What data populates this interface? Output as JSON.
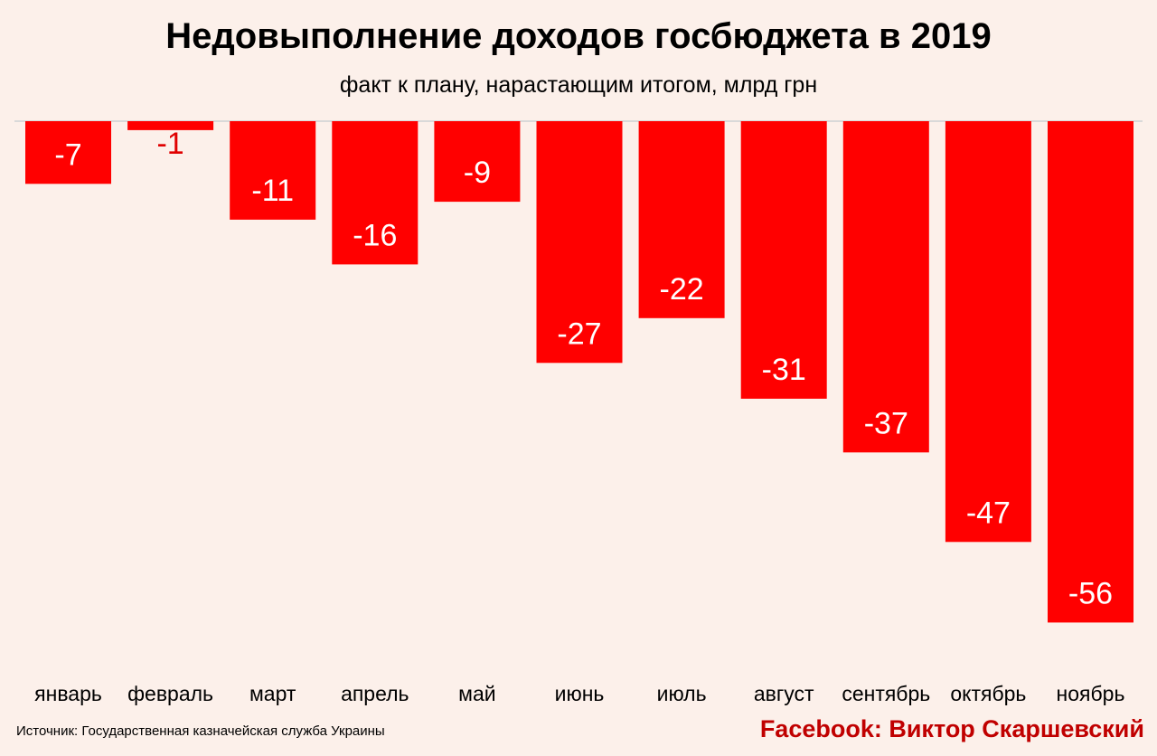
{
  "title": "Недовыполнение доходов госбюджета в 2019",
  "subtitle": "факт к плану, нарастающим итогом, млрд грн",
  "source": "Источник: Государственная казначейская служба Украины",
  "credit": "Facebook: Виктор Скаршевский",
  "colors": {
    "bar": "#ff0000",
    "label_inside": "#ffffff",
    "label_outside": "#e00000",
    "background": "#fcf0ea",
    "axis": "#d9d9d9",
    "credit": "#c00000"
  },
  "chart_data": {
    "type": "bar",
    "categories": [
      "январь",
      "февраль",
      "март",
      "апрель",
      "май",
      "июнь",
      "июль",
      "август",
      "сентябрь",
      "октябрь",
      "ноябрь"
    ],
    "values": [
      -7,
      -1,
      -11,
      -16,
      -9,
      -27,
      -22,
      -31,
      -37,
      -47,
      -56
    ],
    "data_labels": [
      "-7",
      "-1",
      "-11",
      "-16",
      "-9",
      "-27",
      "-22",
      "-31",
      "-37",
      "-47",
      "-56"
    ],
    "ylim": [
      -56,
      0
    ],
    "grid": false,
    "legend": "none"
  }
}
